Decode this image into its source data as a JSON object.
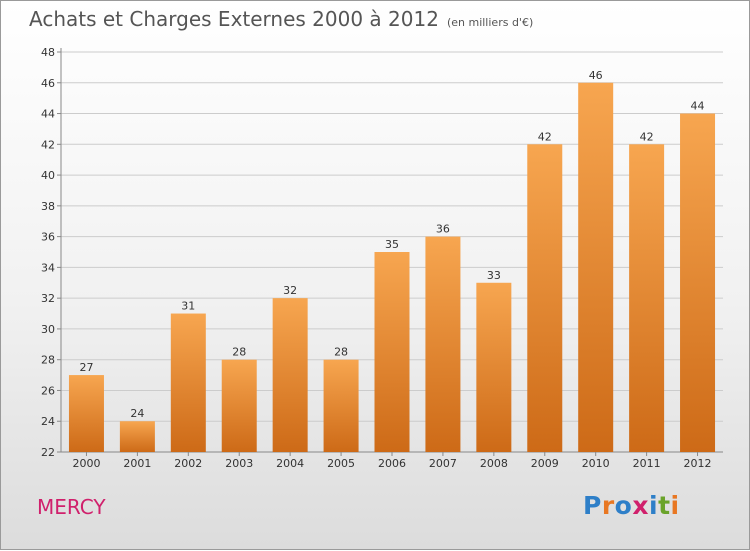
{
  "header": {
    "title": "Achats et Charges Externes 2000 à 2012",
    "subtitle": "(en milliers d'€)"
  },
  "commune": "MERCY",
  "logo": {
    "text": "Proxiti",
    "letters": [
      {
        "ch": "P",
        "color": "#2e7fc8"
      },
      {
        "ch": "r",
        "color": "#e87722"
      },
      {
        "ch": "o",
        "color": "#2e7fc8"
      },
      {
        "ch": "x",
        "color": "#d0206c"
      },
      {
        "ch": "i",
        "color": "#2e7fc8"
      },
      {
        "ch": "t",
        "color": "#6aa32a"
      },
      {
        "ch": "i",
        "color": "#e87722"
      }
    ]
  },
  "colors": {
    "bar_top": "#f7a650",
    "bar_bottom": "#cd6a17",
    "grid": "#cccccc",
    "axis": "#888888"
  },
  "chart_data": {
    "type": "bar",
    "title": "Achats et Charges Externes 2000 à 2012",
    "subtitle": "(en milliers d'€)",
    "categories": [
      "2000",
      "2001",
      "2002",
      "2003",
      "2004",
      "2005",
      "2006",
      "2007",
      "2008",
      "2009",
      "2010",
      "2011",
      "2012"
    ],
    "values": [
      27,
      24,
      31,
      28,
      32,
      28,
      35,
      36,
      33,
      42,
      46,
      42,
      44
    ],
    "ylim": [
      22,
      48
    ],
    "yticks": [
      22,
      24,
      26,
      28,
      30,
      32,
      34,
      36,
      38,
      40,
      42,
      44,
      46,
      48
    ],
    "grid": true,
    "legend": "none"
  }
}
